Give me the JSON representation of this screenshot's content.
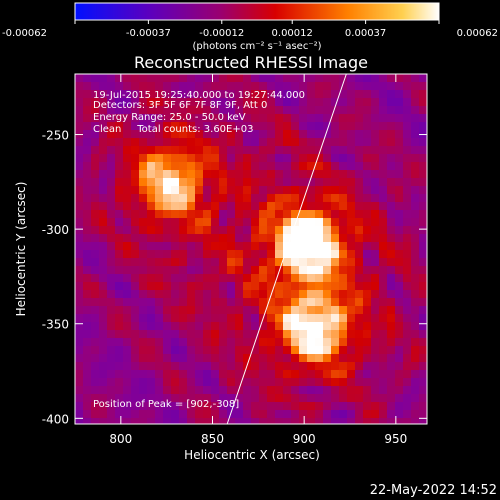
{
  "chart_data": {
    "type": "heatmap",
    "title": "Reconstructed RHESSI Image",
    "xlabel": "Heliocentric X (arcsec)",
    "ylabel": "Heliocentric Y (arcsec)",
    "xlim": [
      775,
      967
    ],
    "ylim": [
      -403,
      -218
    ],
    "x_ticks": [
      800,
      850,
      900,
      950
    ],
    "x_tick_labels": [
      "800",
      "850",
      "900",
      "950"
    ],
    "y_ticks": [
      -250,
      -300,
      -350,
      -400
    ],
    "y_tick_labels": [
      "-250",
      "-300",
      "-350",
      "-400"
    ],
    "colorbar": {
      "range": [
        -0.00062,
        0.00062
      ],
      "tick_values": [
        -0.00062,
        -0.00037,
        -0.00012,
        0.00012,
        0.00037,
        0.00062
      ],
      "tick_labels": [
        "-0.00062",
        "-0.00037",
        "-0.00012",
        "0.00012",
        "0.00037",
        "0.00062"
      ],
      "unit_label": "(photons cm⁻² s⁻¹ asec⁻²)",
      "colors": [
        "#0010ff",
        "#4f00c8",
        "#8a0090",
        "#d20000",
        "#ff7a00",
        "#ffffff"
      ]
    },
    "sources": [
      {
        "x": 827,
        "y": -275,
        "peak": 0.00048
      },
      {
        "x": 902,
        "y": -308,
        "peak": 0.00062
      },
      {
        "x": 906,
        "y": -352,
        "peak": 0.00055
      }
    ],
    "limb_line": [
      [
        858,
        -403
      ],
      [
        923,
        -218
      ]
    ],
    "annotations": [
      "19-Jul-2015 19:25:40.000 to 19:27:44.000",
      "Detectors: 3F 5F 6F 7F 8F 9F, Att 0",
      "Energy Range: 25.0 - 50.0 keV",
      "Clean     Total counts: 3.60E+03"
    ],
    "peak_label": "Position of Peak = [902,-308]"
  },
  "footer": {
    "timestamp": "22-May-2022 14:52"
  }
}
